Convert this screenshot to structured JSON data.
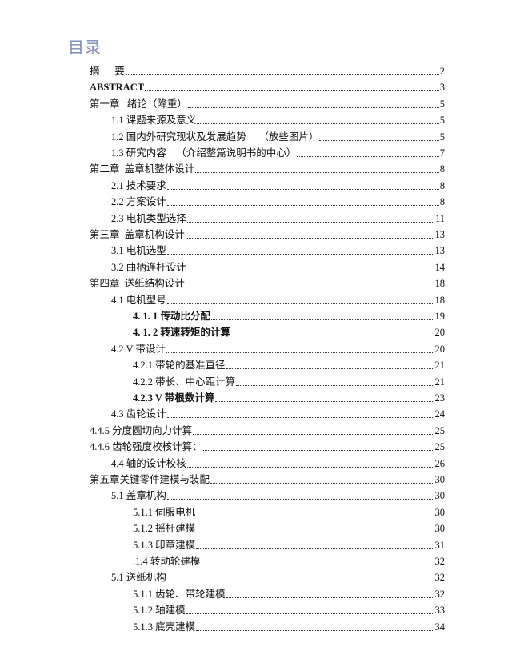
{
  "title": "目录",
  "entries": [
    {
      "text": "摘      要",
      "page": "2",
      "level": 0,
      "bold": false
    },
    {
      "text": "ABSTRACT",
      "page": "3",
      "level": 0,
      "bold": true
    },
    {
      "text": "第一章   绪论（降重）",
      "page": "5",
      "level": 0,
      "bold": false
    },
    {
      "text": "1.1 课题来源及意义",
      "page": "5",
      "level": 1,
      "bold": false
    },
    {
      "text": "1.2 国内外研究现状及发展趋势     （放些图片）",
      "page": "5",
      "level": 1,
      "bold": false
    },
    {
      "text": "1.3 研究内容    （介绍整篇说明书的中心）",
      "page": "7",
      "level": 1,
      "bold": false
    },
    {
      "text": "第二章  盖章机整体设计",
      "page": "8",
      "level": 0,
      "bold": false
    },
    {
      "text": "2.1 技术要求",
      "page": "8",
      "level": 1,
      "bold": false
    },
    {
      "text": "2.2 方案设计",
      "page": "8",
      "level": 1,
      "bold": false
    },
    {
      "text": "2.3 电机类型选择",
      "page": "11",
      "level": 1,
      "bold": false
    },
    {
      "text": "第三章  盖章机构设计",
      "page": "13",
      "level": 0,
      "bold": false
    },
    {
      "text": "3.1 电机选型",
      "page": "13",
      "level": 1,
      "bold": false
    },
    {
      "text": "3.2 曲柄连杆设计",
      "page": "14",
      "level": 1,
      "bold": false
    },
    {
      "text": "第四章  送纸结构设计",
      "page": "18",
      "level": 0,
      "bold": false
    },
    {
      "text": "4.1 电机型号",
      "page": "18",
      "level": 1,
      "bold": false
    },
    {
      "text": "4. 1. 1 传动比分配",
      "page": "19",
      "level": 2,
      "bold": true
    },
    {
      "text": "4. 1. 2 转速转矩的计算",
      "page": "20",
      "level": 2,
      "bold": true
    },
    {
      "text": "4.2 V 带设计",
      "page": "20",
      "level": 1,
      "bold": false
    },
    {
      "text": "4.2.1 带轮的基准直径",
      "page": "21",
      "level": 2,
      "bold": false
    },
    {
      "text": "4.2.2 带长、中心距计算",
      "page": "21",
      "level": 2,
      "bold": false
    },
    {
      "text": "4.2.3 V 带根数计算",
      "page": "23",
      "level": 2,
      "bold": true
    },
    {
      "text": "4.3 齿轮设计",
      "page": "24",
      "level": 1,
      "bold": false
    },
    {
      "text": "4.4.5 分度圆切向力计算",
      "page": "25",
      "level": 0,
      "bold": false
    },
    {
      "text": "4.4.6 齿轮强度校核计算：",
      "page": "25",
      "level": 0,
      "bold": false
    },
    {
      "text": "4.4 轴的设计校核",
      "page": "26",
      "level": 1,
      "bold": false
    },
    {
      "text": "第五章关键零件建模与装配",
      "page": "30",
      "level": 0,
      "bold": false
    },
    {
      "text": "5.1 盖章机构",
      "page": "30",
      "level": 1,
      "bold": false
    },
    {
      "text": "5.1.1 伺服电机",
      "page": "30",
      "level": 2,
      "bold": false
    },
    {
      "text": "5.1.2 摇杆建模",
      "page": "30",
      "level": 2,
      "bold": false
    },
    {
      "text": "5.1.3 印章建模",
      "page": "31",
      "level": 2,
      "bold": false
    },
    {
      "text": ".1.4 转动轮建模",
      "page": "32",
      "level": 2,
      "bold": false
    },
    {
      "text": "5.1 送纸机构",
      "page": "32",
      "level": 1,
      "bold": false
    },
    {
      "text": "5.1.1 齿轮、带轮建模",
      "page": "32",
      "level": 2,
      "bold": false
    },
    {
      "text": "5.1.2 轴建模",
      "page": "33",
      "level": 2,
      "bold": false
    },
    {
      "text": "5.1.3 底壳建模",
      "page": "34",
      "level": 2,
      "bold": false
    }
  ]
}
